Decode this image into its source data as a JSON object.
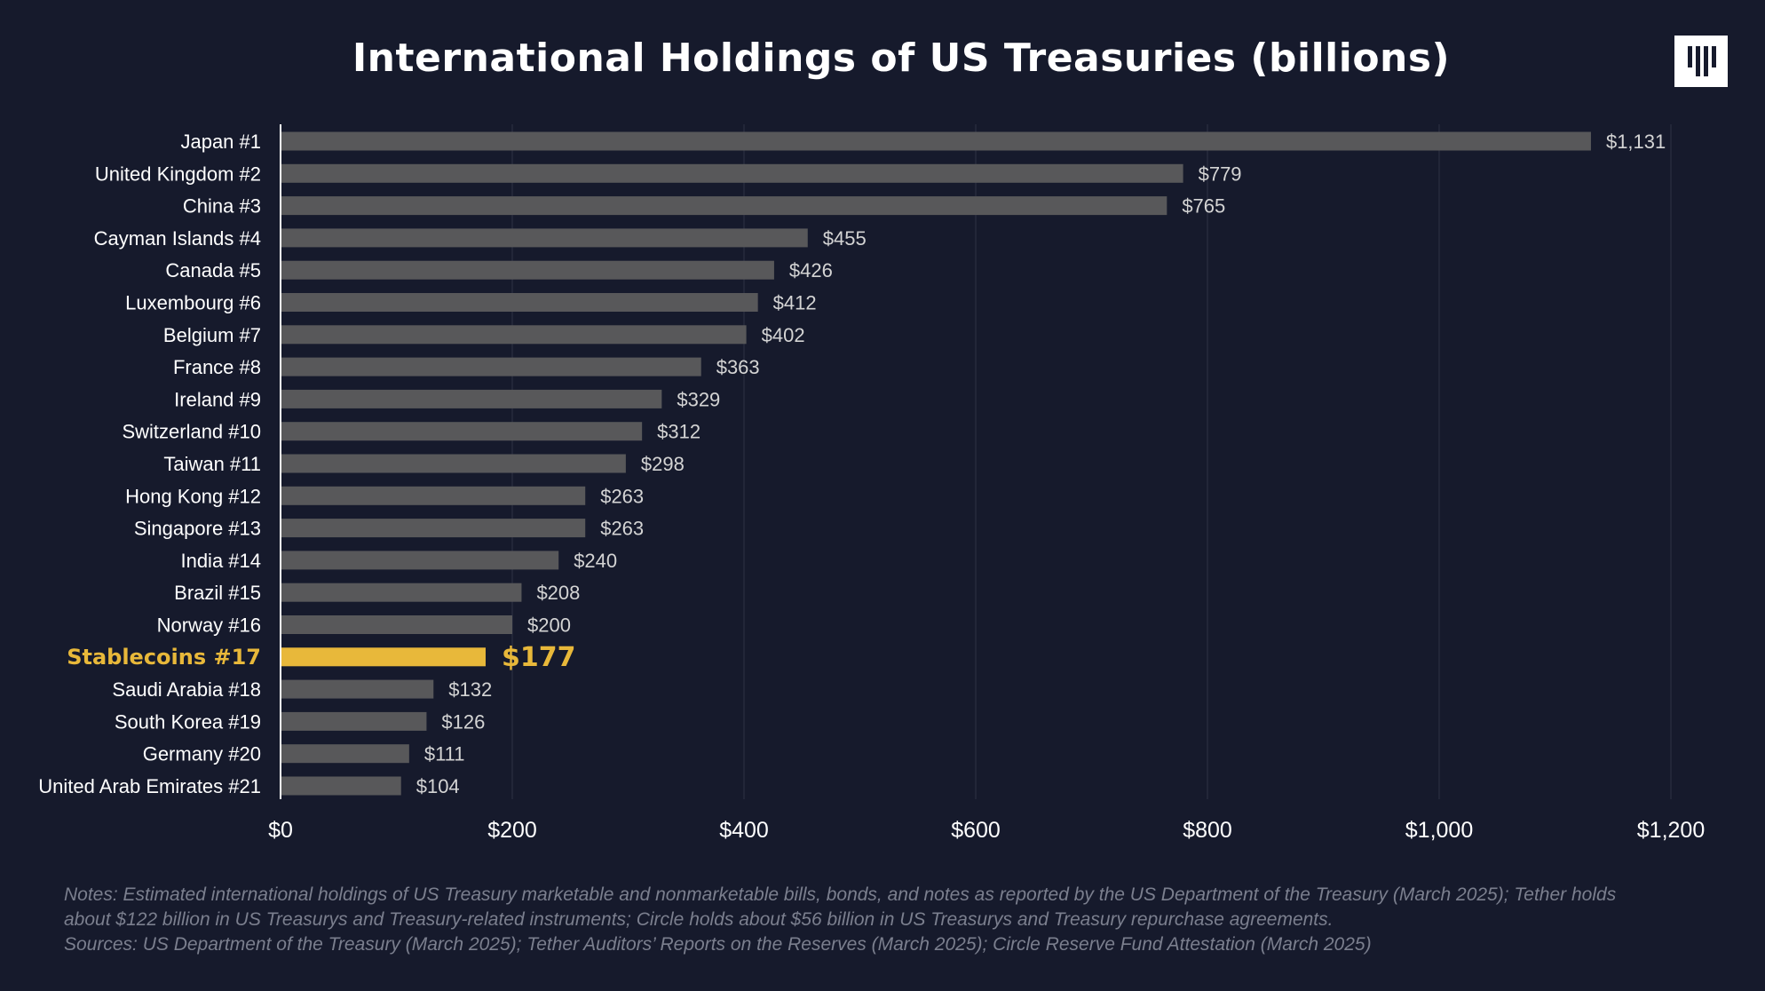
{
  "title": "International Holdings of US Treasuries (billions)",
  "logo": "brand-logo-icon",
  "chart_data": {
    "type": "bar",
    "orientation": "horizontal",
    "title": "International Holdings of US Treasuries (billions)",
    "xlabel": "",
    "ylabel": "",
    "xlim": [
      0,
      1200
    ],
    "grid": true,
    "categories": [
      "Japan #1",
      "United Kingdom #2",
      "China #3",
      "Cayman Islands #4",
      "Canada #5",
      "Luxembourg #6",
      "Belgium #7",
      "France #8",
      "Ireland #9",
      "Switzerland #10",
      "Taiwan #11",
      "Hong Kong #12",
      "Singapore #13",
      "India #14",
      "Brazil #15",
      "Norway #16",
      "Stablecoins #17",
      "Saudi Arabia #18",
      "South Korea #19",
      "Germany #20",
      "United Arab Emirates #21"
    ],
    "values": [
      1131,
      779,
      765,
      455,
      426,
      412,
      402,
      363,
      329,
      312,
      298,
      263,
      263,
      240,
      208,
      200,
      177,
      132,
      126,
      111,
      104
    ],
    "value_labels": [
      "$1,131",
      "$779",
      "$765",
      "$455",
      "$426",
      "$412",
      "$402",
      "$363",
      "$329",
      "$312",
      "$298",
      "$263",
      "$263",
      "$240",
      "$208",
      "$200",
      "$177",
      "$132",
      "$126",
      "$111",
      "$104"
    ],
    "highlight_index": 16,
    "x_ticks": [
      0,
      200,
      400,
      600,
      800,
      1000,
      1200
    ],
    "x_tick_labels": [
      "$0",
      "$200",
      "$400",
      "$600",
      "$800",
      "$1,000",
      "$1,200"
    ],
    "colors": {
      "background": "#161a2c",
      "bar": "#58585a",
      "highlight": "#e8b83a",
      "grid": "#2e3244",
      "text": "#ffffff",
      "value_text": "#d4d4d4"
    }
  },
  "notes": {
    "line1": "Notes: Estimated international holdings of US Treasury marketable and nonmarketable bills, bonds, and notes as reported by the US Department of the Treasury (March 2025); Tether holds",
    "line2": "about $122 billion in US Treasurys and Treasury-related instruments; Circle holds about $56 billion in US Treasurys and Treasury repurchase agreements.",
    "sources": "Sources: US Department of the Treasury (March 2025); Tether Auditors’ Reports on the Reserves (March 2025); Circle Reserve Fund Attestation (March 2025)"
  }
}
